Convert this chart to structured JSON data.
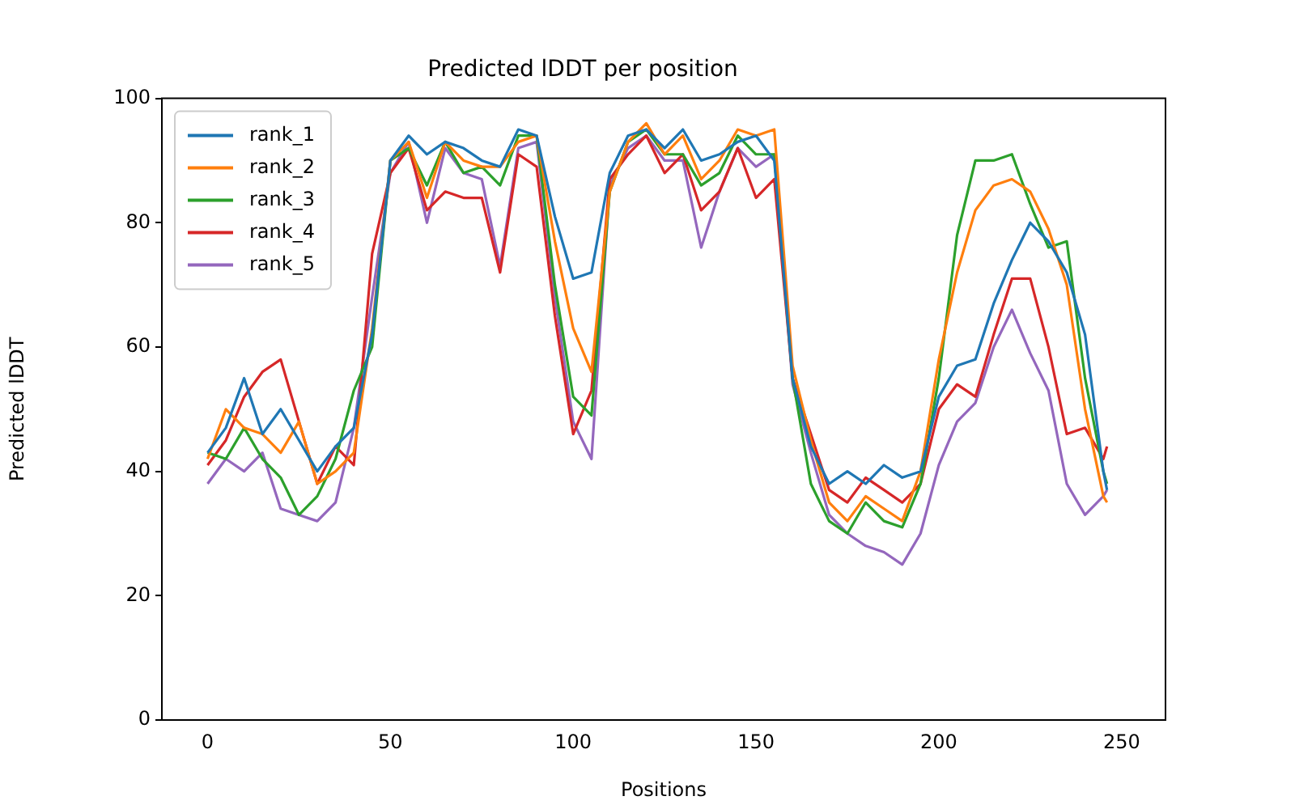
{
  "chart_data": {
    "type": "line",
    "title": "Predicted lDDT per position",
    "xlabel": "Positions",
    "ylabel": "Predicted lDDT",
    "x": [
      0,
      5,
      10,
      15,
      20,
      25,
      30,
      35,
      40,
      45,
      50,
      55,
      60,
      65,
      70,
      75,
      80,
      85,
      90,
      95,
      100,
      105,
      110,
      115,
      120,
      125,
      130,
      135,
      140,
      145,
      150,
      155,
      160,
      165,
      170,
      175,
      180,
      185,
      190,
      195,
      200,
      205,
      210,
      215,
      220,
      225,
      230,
      235,
      240,
      245,
      246
    ],
    "xlim": [
      -12.5,
      262
    ],
    "xticks": [
      0,
      50,
      100,
      150,
      200,
      250
    ],
    "ylim": [
      0,
      100
    ],
    "yticks": [
      0,
      20,
      40,
      60,
      80,
      100
    ],
    "grid": false,
    "legend": "top left",
    "marker": "none",
    "line_style": "solid",
    "series": [
      {
        "name": "rank_1",
        "color": "#1f77b4",
        "values": [
          43,
          47,
          55,
          46,
          50,
          45,
          40,
          44,
          47,
          62,
          90,
          94,
          91,
          93,
          92,
          90,
          89,
          95,
          94,
          81,
          71,
          72,
          88,
          94,
          95,
          92,
          95,
          90,
          91,
          93,
          94,
          90,
          55,
          44,
          38,
          40,
          38,
          41,
          39,
          40,
          52,
          57,
          58,
          67,
          74,
          80,
          77,
          72,
          62,
          40,
          37
        ]
      },
      {
        "name": "rank_2",
        "color": "#ff7f0e",
        "values": [
          42,
          50,
          47,
          46,
          43,
          48,
          38,
          40,
          43,
          63,
          90,
          93,
          84,
          93,
          90,
          89,
          89,
          93,
          94,
          77,
          63,
          56,
          85,
          93,
          96,
          91,
          94,
          87,
          90,
          95,
          94,
          95,
          57,
          45,
          35,
          32,
          36,
          34,
          32,
          40,
          58,
          72,
          82,
          86,
          87,
          85,
          79,
          70,
          50,
          36,
          35
        ]
      },
      {
        "name": "rank_3",
        "color": "#2ca02c",
        "values": [
          43,
          42,
          47,
          42,
          39,
          33,
          36,
          42,
          53,
          60,
          90,
          92,
          86,
          93,
          88,
          89,
          86,
          94,
          94,
          70,
          52,
          49,
          85,
          93,
          95,
          91,
          91,
          86,
          88,
          94,
          91,
          91,
          55,
          38,
          32,
          30,
          35,
          32,
          31,
          38,
          55,
          78,
          90,
          90,
          91,
          83,
          76,
          77,
          55,
          40,
          38
        ]
      },
      {
        "name": "rank_4",
        "color": "#d62728",
        "values": [
          41,
          45,
          52,
          56,
          58,
          48,
          38,
          44,
          41,
          75,
          88,
          92,
          82,
          85,
          84,
          84,
          72,
          91,
          89,
          65,
          46,
          53,
          87,
          91,
          94,
          88,
          91,
          82,
          85,
          92,
          84,
          87,
          55,
          46,
          37,
          35,
          39,
          37,
          35,
          38,
          50,
          54,
          52,
          62,
          71,
          71,
          60,
          46,
          47,
          42,
          44
        ]
      },
      {
        "name": "rank_5",
        "color": "#9467bd",
        "values": [
          38,
          42,
          40,
          43,
          34,
          33,
          32,
          35,
          47,
          68,
          88,
          93,
          80,
          92,
          88,
          87,
          73,
          92,
          93,
          68,
          48,
          42,
          86,
          92,
          94,
          90,
          90,
          76,
          85,
          92,
          89,
          91,
          54,
          43,
          33,
          30,
          28,
          27,
          25,
          30,
          41,
          48,
          51,
          60,
          66,
          59,
          53,
          38,
          33,
          36,
          37
        ]
      }
    ]
  }
}
